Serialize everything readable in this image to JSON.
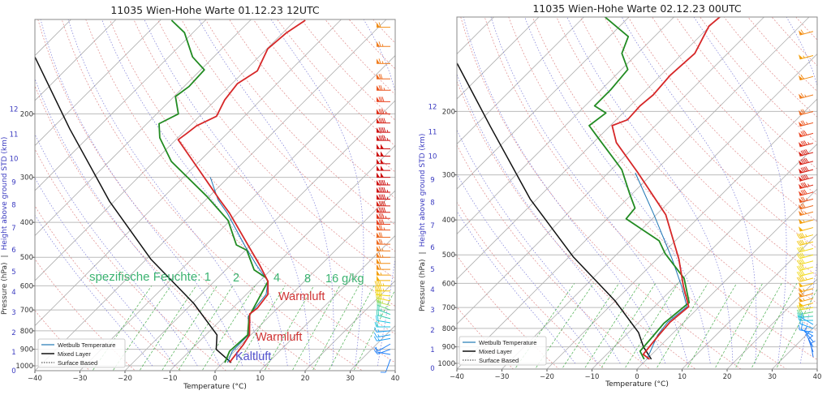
{
  "chart_data": [
    {
      "type": "skewt",
      "title": "11035 Wien-Hohe Warte 01.12.23 12UTC",
      "xlabel": "Temperature (°C)",
      "ylabel_pressure": "Pressure (hPa)",
      "ylabel_separator": "|",
      "ylabel_height": "Height above ground STD (km)",
      "xlim": [
        -40,
        40
      ],
      "ylim": [
        1031,
        110
      ],
      "x_ticks": [
        -40,
        -30,
        -20,
        -10,
        0,
        10,
        20,
        30,
        40
      ],
      "p_ticks": [
        200,
        300,
        400,
        500,
        600,
        700,
        800,
        900,
        1000
      ],
      "height_ticks": [
        {
          "km": 0,
          "p": 1031
        },
        {
          "km": 1,
          "p": 916
        },
        {
          "km": 2,
          "p": 809
        },
        {
          "km": 3,
          "p": 710
        },
        {
          "km": 4,
          "p": 624
        },
        {
          "km": 5,
          "p": 548
        },
        {
          "km": 6,
          "p": 477
        },
        {
          "km": 7,
          "p": 414
        },
        {
          "km": 8,
          "p": 358
        },
        {
          "km": 9,
          "p": 309
        },
        {
          "km": 10,
          "p": 266
        },
        {
          "km": 11,
          "p": 228
        },
        {
          "km": 12,
          "p": 194
        }
      ],
      "legend": [
        "Wetbulb Temperature",
        "Mixed Layer",
        "Surface Based"
      ],
      "annotations": {
        "humidity_label": "spezifische Feuchte: 1",
        "q2": "2",
        "q4": "4",
        "q8": "8",
        "q16": "16 g/kg",
        "warm_upper": "Warmluft",
        "warm_lower": "Warmluft",
        "cold": "Kaltluft"
      },
      "temperature": [
        [
          980,
          1.4
        ],
        [
          874,
          0.5
        ],
        [
          821,
          -0.3
        ],
        [
          718,
          -4.9
        ],
        [
          692,
          -4.5
        ],
        [
          634,
          -5.2
        ],
        [
          583,
          -8.1
        ],
        [
          526,
          -13.5
        ],
        [
          469,
          -19.8
        ],
        [
          377,
          -31.8
        ],
        [
          347,
          -36.8
        ],
        [
          236,
          -59.5
        ],
        [
          227,
          -59
        ],
        [
          216,
          -58.5
        ],
        [
          203,
          -56.2
        ],
        [
          183,
          -58
        ],
        [
          165,
          -58.8
        ],
        [
          152,
          -57.2
        ],
        [
          132,
          -59.8
        ],
        [
          119,
          -59.2
        ],
        [
          110,
          -57.8
        ]
      ],
      "dewpoint": [
        [
          980,
          0.4
        ],
        [
          911,
          -1.1
        ],
        [
          821,
          -0.7
        ],
        [
          729,
          -4.5
        ],
        [
          583,
          -8.1
        ],
        [
          570,
          -9.3
        ],
        [
          542,
          -13.7
        ],
        [
          478,
          -19.7
        ],
        [
          462,
          -23.2
        ],
        [
          395,
          -30.5
        ],
        [
          339,
          -40.5
        ],
        [
          271,
          -56.2
        ],
        [
          233,
          -64
        ],
        [
          213,
          -67.3
        ],
        [
          200,
          -65.2
        ],
        [
          179,
          -69.7
        ],
        [
          168,
          -68.9
        ],
        [
          151,
          -69.2
        ],
        [
          139,
          -74.7
        ],
        [
          119,
          -81.9
        ],
        [
          110,
          -87.5
        ]
      ],
      "wetbulb": [
        [
          980,
          1
        ],
        [
          911,
          -0.5
        ],
        [
          821,
          -0.5
        ],
        [
          729,
          -4.7
        ],
        [
          634,
          -5.6
        ],
        [
          583,
          -8.1
        ],
        [
          526,
          -14.2
        ],
        [
          469,
          -20.6
        ],
        [
          377,
          -32.3
        ],
        [
          347,
          -37.2
        ],
        [
          300,
          -44
        ]
      ],
      "mixed_layer_parcel": [
        [
          980,
          1.8
        ],
        [
          900,
          -4.5
        ],
        [
          821,
          -7.5
        ],
        [
          671,
          -19.7
        ],
        [
          507,
          -38.9
        ],
        [
          350,
          -61
        ],
        [
          220,
          -86
        ],
        [
          139,
          -109.7
        ]
      ],
      "wind": {
        "p": [
          115,
          130,
          145,
          160,
          172,
          185,
          200,
          212,
          225,
          237,
          250,
          262,
          275,
          287,
          300,
          315,
          330,
          345,
          360,
          375,
          390,
          405,
          420,
          440,
          460,
          480,
          500,
          520,
          540,
          560,
          580,
          600,
          620,
          640,
          660,
          680,
          700,
          720,
          740,
          760,
          780,
          800,
          820,
          840,
          870,
          900,
          930,
          960
        ],
        "speed_kt": [
          60,
          65,
          65,
          70,
          75,
          80,
          85,
          90,
          95,
          95,
          100,
          100,
          100,
          100,
          100,
          95,
          95,
          95,
          90,
          90,
          85,
          80,
          75,
          70,
          70,
          65,
          65,
          60,
          60,
          55,
          50,
          45,
          45,
          40,
          40,
          35,
          30,
          25,
          25,
          20,
          20,
          15,
          15,
          15,
          10,
          10,
          10,
          10
        ],
        "direction_deg": [
          270,
          270,
          270,
          270,
          270,
          270,
          270,
          270,
          270,
          270,
          270,
          270,
          270,
          270,
          270,
          270,
          270,
          270,
          270,
          270,
          270,
          270,
          270,
          270,
          270,
          270,
          270,
          270,
          270,
          270,
          270,
          270,
          270,
          275,
          280,
          285,
          290,
          290,
          285,
          280,
          270,
          265,
          260,
          260,
          240,
          250,
          280,
          200
        ]
      }
    },
    {
      "type": "skewt",
      "title": "11035 Wien-Hohe Warte 02.12.23 00UTC",
      "xlabel": "Temperature (°C)",
      "ylabel_pressure": "Pressure (hPa)",
      "ylabel_separator": "|",
      "ylabel_height": "Height above ground STD (km)",
      "xlim": [
        -40,
        40
      ],
      "ylim": [
        1035,
        106
      ],
      "x_ticks": [
        -40,
        -30,
        -20,
        -10,
        0,
        10,
        20,
        30,
        40
      ],
      "p_ticks": [
        200,
        300,
        400,
        500,
        600,
        700,
        800,
        900,
        1000
      ],
      "height_ticks": [
        {
          "km": 0,
          "p": 1031
        },
        {
          "km": 1,
          "p": 916
        },
        {
          "km": 2,
          "p": 809
        },
        {
          "km": 3,
          "p": 710
        },
        {
          "km": 4,
          "p": 624
        },
        {
          "km": 5,
          "p": 548
        },
        {
          "km": 6,
          "p": 477
        },
        {
          "km": 7,
          "p": 414
        },
        {
          "km": 8,
          "p": 358
        },
        {
          "km": 9,
          "p": 309
        },
        {
          "km": 10,
          "p": 266
        },
        {
          "km": 11,
          "p": 228
        },
        {
          "km": 12,
          "p": 194
        }
      ],
      "legend": [
        "Wetbulb Temperature",
        "Mixed Layer",
        "Surface Based"
      ],
      "temperature": [
        [
          974,
          0.6
        ],
        [
          944,
          -1.9
        ],
        [
          834,
          -2.7
        ],
        [
          769,
          -3.1
        ],
        [
          696,
          -2.4
        ],
        [
          611,
          -8.1
        ],
        [
          514,
          -15.1
        ],
        [
          387,
          -27.9
        ],
        [
          296,
          -43.4
        ],
        [
          244,
          -54.9
        ],
        [
          219,
          -59.6
        ],
        [
          211,
          -57.5
        ],
        [
          193,
          -57.8
        ],
        [
          180,
          -57.3
        ],
        [
          159,
          -57.9
        ],
        [
          138,
          -57.3
        ],
        [
          116,
          -60.2
        ],
        [
          106,
          -59.6
        ]
      ],
      "dewpoint": [
        [
          974,
          -0.6
        ],
        [
          925,
          -3.3
        ],
        [
          834,
          -3.8
        ],
        [
          774,
          -4.2
        ],
        [
          678,
          -3.2
        ],
        [
          581,
          -9.7
        ],
        [
          496,
          -19.4
        ],
        [
          457,
          -23.6
        ],
        [
          427,
          -29.5
        ],
        [
          397,
          -35.8
        ],
        [
          371,
          -36.2
        ],
        [
          339,
          -40.5
        ],
        [
          290,
          -47.7
        ],
        [
          236,
          -60.2
        ],
        [
          219,
          -64.7
        ],
        [
          202,
          -63.8
        ],
        [
          193,
          -67.9
        ],
        [
          174,
          -67.9
        ],
        [
          153,
          -68.6
        ],
        [
          138,
          -73.5
        ],
        [
          124,
          -75.8
        ],
        [
          107,
          -87
        ]
      ],
      "wetbulb": [
        [
          974,
          0
        ],
        [
          834,
          -3
        ],
        [
          769,
          -3.6
        ],
        [
          696,
          -2.8
        ],
        [
          611,
          -8.5
        ],
        [
          514,
          -16.6
        ],
        [
          387,
          -30.5
        ],
        [
          296,
          -44
        ]
      ],
      "mixed_layer_parcel": [
        [
          974,
          1.0
        ],
        [
          900,
          -3.5
        ],
        [
          821,
          -7.8
        ],
        [
          671,
          -20
        ],
        [
          507,
          -39
        ],
        [
          350,
          -61.5
        ],
        [
          220,
          -86.5
        ],
        [
          147,
          -107.9
        ]
      ],
      "wind": {
        "p": [
          120,
          140,
          160,
          180,
          200,
          215,
          230,
          245,
          260,
          275,
          290,
          305,
          320,
          335,
          350,
          365,
          380,
          400,
          420,
          440,
          460,
          480,
          500,
          520,
          540,
          560,
          580,
          600,
          620,
          640,
          660,
          680,
          700,
          720,
          740,
          760,
          780,
          800,
          820,
          840,
          870,
          900,
          930,
          960
        ],
        "speed_kt": [
          60,
          55,
          60,
          65,
          70,
          75,
          80,
          85,
          90,
          90,
          90,
          90,
          85,
          80,
          75,
          70,
          65,
          55,
          50,
          45,
          45,
          40,
          40,
          40,
          40,
          40,
          45,
          50,
          55,
          60,
          55,
          50,
          40,
          30,
          25,
          20,
          15,
          15,
          12,
          12,
          10,
          10,
          8,
          8
        ],
        "direction_deg": [
          255,
          255,
          255,
          255,
          255,
          255,
          255,
          255,
          255,
          255,
          255,
          255,
          255,
          255,
          255,
          255,
          255,
          255,
          255,
          255,
          255,
          255,
          255,
          255,
          255,
          255,
          255,
          255,
          255,
          255,
          255,
          255,
          260,
          260,
          265,
          270,
          300,
          290,
          280,
          300,
          320,
          330,
          340,
          350
        ]
      }
    }
  ],
  "colors": {
    "temperature": "#d62728",
    "dewpoint": "#228b22",
    "wetbulb": "#1f77b4",
    "parcel": "#111111",
    "isotherm": "#b0b0b0",
    "dry_adiabat": "#e08a8a",
    "moist_adiabat": "#7b7bd8",
    "mixing_ratio": "#4caf50",
    "humidity_text": "#3cb371",
    "warm_text": "#d03535",
    "cold_text": "#5050cc",
    "height_text": "#3a3ac0"
  }
}
